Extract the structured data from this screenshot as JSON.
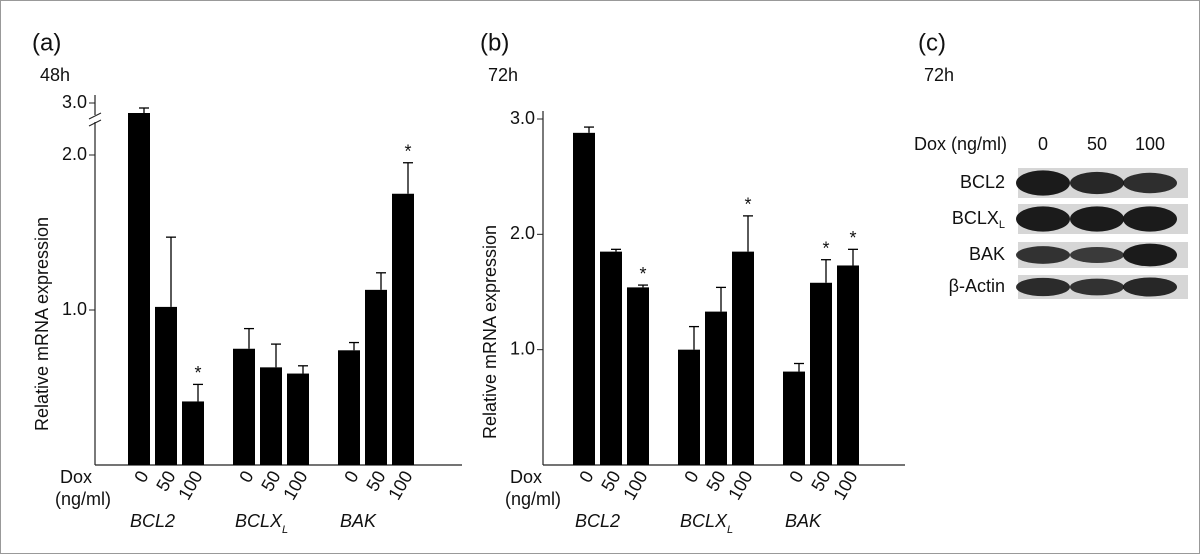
{
  "chart_data": [
    {
      "type": "bar",
      "panel": "(a)",
      "subtitle": "48h",
      "y_label": "Relative mRNA expression",
      "x_label": "Dox",
      "x_unit": "(ng/ml)",
      "color": "#000000",
      "ylim": [
        0,
        3.0
      ],
      "ybreak": [
        2.2,
        2.8
      ],
      "yticks": [
        {
          "value": 1.0,
          "label": "1.0"
        },
        {
          "value": 2.0,
          "label": "2.0"
        },
        {
          "value": 3.0,
          "label": "3.0"
        }
      ],
      "star_label": "*",
      "groups": [
        {
          "name": "BCL2",
          "doses": [
            "0",
            "50",
            "100"
          ],
          "values": [
            2.8,
            1.02,
            0.41
          ],
          "errors": [
            0.1,
            0.45,
            0.11
          ],
          "stars": [
            false,
            false,
            true
          ]
        },
        {
          "name": "BCLX",
          "sub": "L",
          "doses": [
            "0",
            "50",
            "100"
          ],
          "values": [
            0.75,
            0.63,
            0.59
          ],
          "errors": [
            0.13,
            0.15,
            0.05
          ],
          "stars": [
            false,
            false,
            false
          ]
        },
        {
          "name": "BAK",
          "doses": [
            "0",
            "50",
            "100"
          ],
          "values": [
            0.74,
            1.13,
            1.75
          ],
          "errors": [
            0.05,
            0.11,
            0.2
          ],
          "stars": [
            false,
            false,
            true
          ]
        }
      ]
    },
    {
      "type": "bar",
      "panel": "(b)",
      "subtitle": "72h",
      "y_label": "Relative mRNA expression",
      "x_label": "Dox",
      "x_unit": "(ng/ml)",
      "color": "#000000",
      "ylim": [
        0,
        3.0
      ],
      "yticks": [
        {
          "value": 1.0,
          "label": "1.0"
        },
        {
          "value": 2.0,
          "label": "2.0"
        },
        {
          "value": 3.0,
          "label": "3.0"
        }
      ],
      "star_label": "*",
      "groups": [
        {
          "name": "BCL2",
          "doses": [
            "0",
            "50",
            "100"
          ],
          "values": [
            2.88,
            1.85,
            1.54
          ],
          "errors": [
            0.05,
            0.02,
            0.02
          ],
          "stars": [
            false,
            false,
            true
          ]
        },
        {
          "name": "BCLX",
          "sub": "L",
          "doses": [
            "0",
            "50",
            "100"
          ],
          "values": [
            1.0,
            1.33,
            1.85
          ],
          "errors": [
            0.2,
            0.21,
            0.31
          ],
          "stars": [
            false,
            false,
            true
          ]
        },
        {
          "name": "BAK",
          "doses": [
            "0",
            "50",
            "100"
          ],
          "values": [
            0.81,
            1.58,
            1.73
          ],
          "errors": [
            0.07,
            0.2,
            0.14
          ],
          "stars": [
            false,
            true,
            true
          ]
        }
      ]
    }
  ],
  "blot": {
    "panel": "(c)",
    "subtitle": "72h",
    "dose_label": "Dox (ng/ml)",
    "doses": [
      "0",
      "50",
      "100"
    ],
    "rows": [
      {
        "name": "BCL2"
      },
      {
        "name": "BCLX",
        "sub": "L"
      },
      {
        "name": "BAK"
      },
      {
        "name": "β-Actin"
      }
    ]
  }
}
